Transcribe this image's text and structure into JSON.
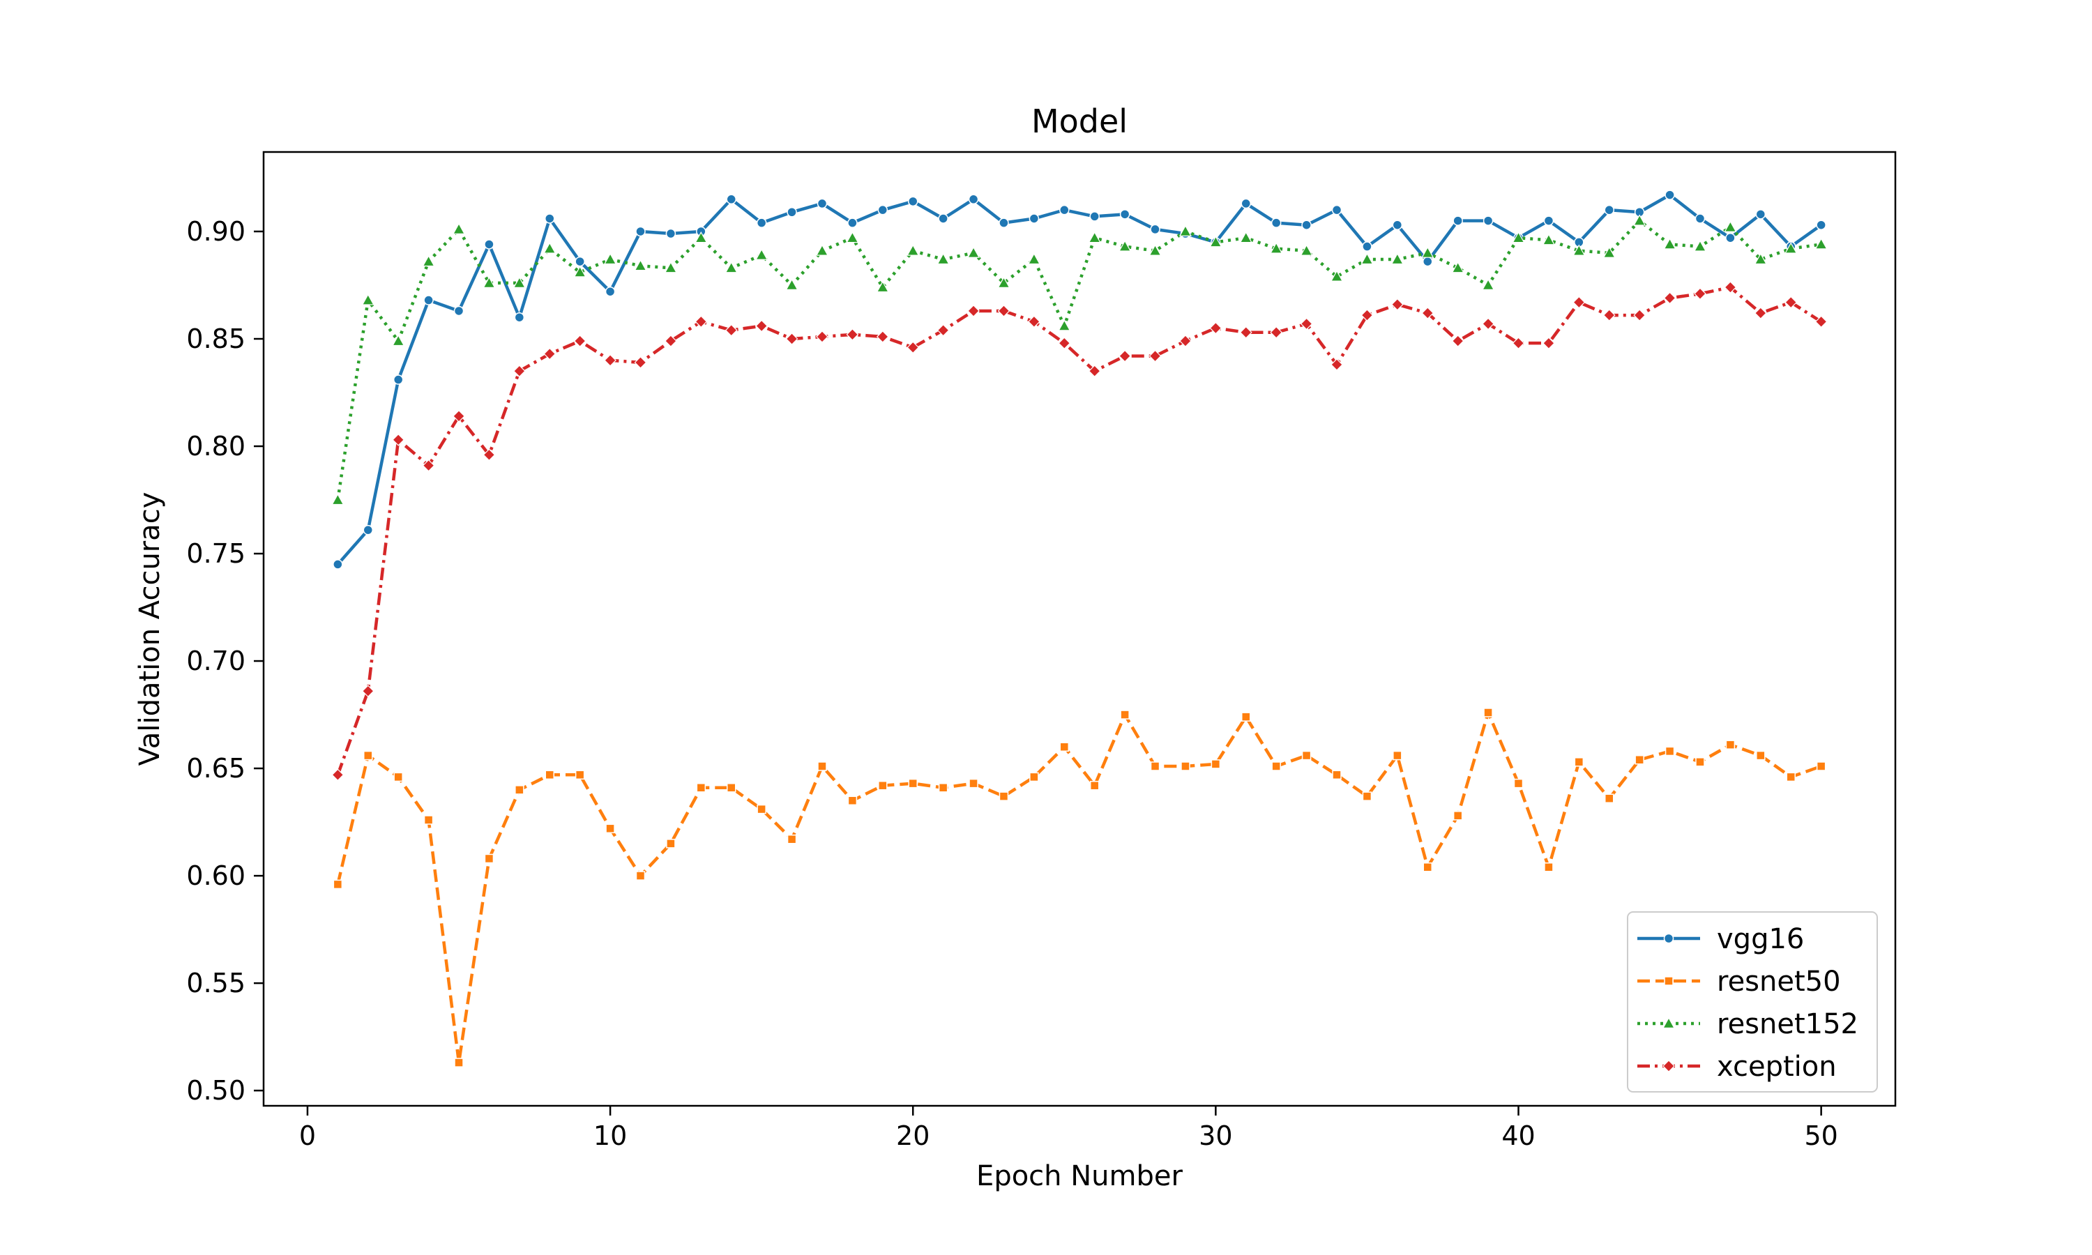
{
  "chart_data": {
    "type": "line",
    "title": "Model",
    "xlabel": "Epoch Number",
    "ylabel": "Validation Accuracy",
    "xlim": [
      -1.45,
      52.45
    ],
    "ylim": [
      0.4929,
      0.937
    ],
    "xticks": [
      "0",
      "10",
      "20",
      "30",
      "40",
      "50"
    ],
    "yticks": [
      "0.50",
      "0.55",
      "0.60",
      "0.65",
      "0.70",
      "0.75",
      "0.80",
      "0.85",
      "0.90"
    ],
    "grid": false,
    "legend_position": "bottom-right",
    "x": [
      1,
      2,
      3,
      4,
      5,
      6,
      7,
      8,
      9,
      10,
      11,
      12,
      13,
      14,
      15,
      16,
      17,
      18,
      19,
      20,
      21,
      22,
      23,
      24,
      25,
      26,
      27,
      28,
      29,
      30,
      31,
      32,
      33,
      34,
      35,
      36,
      37,
      38,
      39,
      40,
      41,
      42,
      43,
      44,
      45,
      46,
      47,
      48,
      49,
      50
    ],
    "series": [
      {
        "name": "vgg16",
        "color": "#1f77b4",
        "dash": "solid",
        "marker": "circle",
        "values": [
          0.745,
          0.761,
          0.831,
          0.868,
          0.863,
          0.894,
          0.86,
          0.906,
          0.886,
          0.872,
          0.9,
          0.899,
          0.9,
          0.915,
          0.904,
          0.909,
          0.913,
          0.904,
          0.91,
          0.914,
          0.906,
          0.915,
          0.904,
          0.906,
          0.91,
          0.907,
          0.908,
          0.901,
          0.899,
          0.895,
          0.913,
          0.904,
          0.903,
          0.91,
          0.893,
          0.903,
          0.886,
          0.905,
          0.905,
          0.897,
          0.905,
          0.895,
          0.91,
          0.909,
          0.917,
          0.906,
          0.897,
          0.908,
          0.893,
          0.903
        ]
      },
      {
        "name": "resnet50",
        "color": "#ff7f0e",
        "dash": "dashed",
        "marker": "square",
        "values": [
          0.596,
          0.656,
          0.646,
          0.626,
          0.513,
          0.608,
          0.64,
          0.647,
          0.647,
          0.622,
          0.6,
          0.615,
          0.641,
          0.641,
          0.631,
          0.617,
          0.651,
          0.635,
          0.642,
          0.643,
          0.641,
          0.643,
          0.637,
          0.646,
          0.66,
          0.642,
          0.675,
          0.651,
          0.651,
          0.652,
          0.674,
          0.651,
          0.656,
          0.647,
          0.637,
          0.656,
          0.604,
          0.628,
          0.676,
          0.643,
          0.604,
          0.653,
          0.636,
          0.654,
          0.658,
          0.653,
          0.661,
          0.656,
          0.646,
          0.651
        ]
      },
      {
        "name": "resnet152",
        "color": "#2ca02c",
        "dash": "dotted",
        "marker": "triangle",
        "values": [
          0.775,
          0.868,
          0.849,
          0.886,
          0.901,
          0.876,
          0.876,
          0.892,
          0.881,
          0.887,
          0.884,
          0.883,
          0.897,
          0.883,
          0.889,
          0.875,
          0.891,
          0.897,
          0.874,
          0.891,
          0.887,
          0.89,
          0.876,
          0.887,
          0.856,
          0.897,
          0.893,
          0.891,
          0.9,
          0.895,
          0.897,
          0.892,
          0.891,
          0.879,
          0.887,
          0.887,
          0.89,
          0.883,
          0.875,
          0.897,
          0.896,
          0.891,
          0.89,
          0.905,
          0.894,
          0.893,
          0.902,
          0.887,
          0.892,
          0.894
        ]
      },
      {
        "name": "xception",
        "color": "#d62728",
        "dash": "dashdot",
        "marker": "diamond",
        "values": [
          0.647,
          0.686,
          0.803,
          0.791,
          0.814,
          0.796,
          0.835,
          0.843,
          0.849,
          0.84,
          0.839,
          0.849,
          0.858,
          0.854,
          0.856,
          0.85,
          0.851,
          0.852,
          0.851,
          0.846,
          0.854,
          0.863,
          0.863,
          0.858,
          0.848,
          0.835,
          0.842,
          0.842,
          0.849,
          0.855,
          0.853,
          0.853,
          0.857,
          0.838,
          0.861,
          0.866,
          0.862,
          0.849,
          0.857,
          0.848,
          0.848,
          0.867,
          0.861,
          0.861,
          0.869,
          0.871,
          0.874,
          0.862,
          0.867,
          0.858
        ]
      }
    ]
  }
}
